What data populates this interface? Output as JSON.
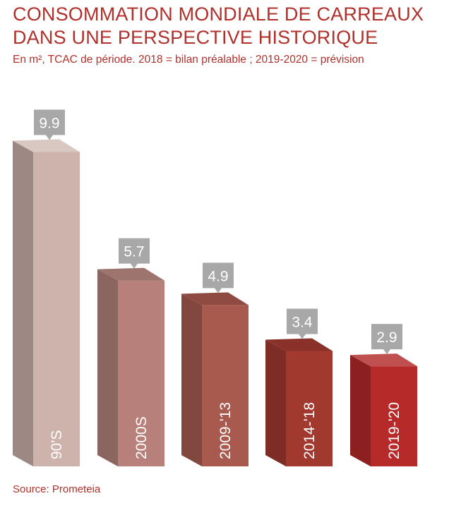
{
  "header": {
    "title_line1": "CONSOMMATION MONDIALE DE CARREAUX",
    "title_line2": "DANS UNE PERSPECTIVE HISTORIQUE",
    "subtitle": "En m², TCAC de période. 2018 = bilan préalable ; 2019-2020 = prévision"
  },
  "footer": {
    "source": "Source: Prometeia"
  },
  "chart_data": {
    "type": "bar",
    "categories": [
      "90'S",
      "2000S",
      "2009-'13",
      "2014-'18",
      "2019-'20"
    ],
    "values": [
      9.9,
      5.7,
      4.9,
      3.4,
      2.9
    ],
    "value_labels": [
      "9.9",
      "5.7",
      "4.9",
      "3.4",
      "2.9"
    ],
    "colors": {
      "front": [
        "#cdb3ac",
        "#b8807a",
        "#a95a4e",
        "#a2392f",
        "#b62a2a"
      ],
      "side": [
        "#9c8983",
        "#8b6560",
        "#82473f",
        "#7d2d25",
        "#8c2021"
      ],
      "top": [
        "#d9c7c2",
        "#9e746e",
        "#8f4b42",
        "#8a3229",
        "#c05050"
      ],
      "callout": "#a8a8a8",
      "text": "#b0302b"
    },
    "ylim": [
      0,
      10
    ],
    "grid": false,
    "legend": "none",
    "style": "3d-columns"
  }
}
